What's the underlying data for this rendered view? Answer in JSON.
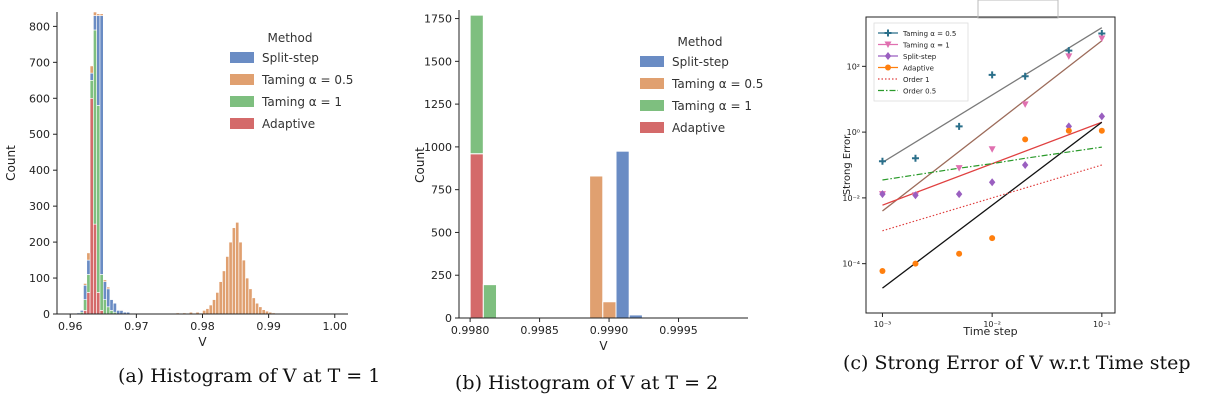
{
  "colors": {
    "split_step": "#6a8cc4",
    "taming_05": "#e0a070",
    "taming_1": "#7ebf7f",
    "adaptive": "#d46a6a",
    "gray_line": "#7a7a7a",
    "brown_line": "#9c6b5a"
  },
  "captions": {
    "a": "(a) Histogram of V at T = 1",
    "b": "(b) Histogram of V at T = 2",
    "c": "(c) Strong Error of V w.r.t Time step"
  },
  "chart_data": [
    {
      "type": "bar",
      "subtype": "stacked-histogram",
      "xlabel": "V",
      "ylabel": "Count",
      "xlim": [
        0.958,
        1.002
      ],
      "ylim": [
        0,
        840
      ],
      "xticks": [
        "0.96",
        "0.97",
        "0.98",
        "0.99",
        "1.00"
      ],
      "yticks": [
        "0",
        "100",
        "200",
        "300",
        "400",
        "500",
        "600",
        "700",
        "800"
      ],
      "legend": {
        "title": "Method",
        "entries": [
          "Split-step",
          "Taming α = 0.5",
          "Taming α = 1",
          "Adaptive"
        ],
        "placement": "top-right"
      },
      "bin_width": 0.0005,
      "series": [
        {
          "name": "Adaptive",
          "bins": [
            [
              0.962,
              10
            ],
            [
              0.9625,
              60
            ],
            [
              0.963,
              600
            ],
            [
              0.9635,
              250
            ],
            [
              0.964,
              60
            ],
            [
              0.9645,
              10
            ]
          ]
        },
        {
          "name": "Taming α = 1",
          "bins": [
            [
              0.9615,
              5
            ],
            [
              0.962,
              30
            ],
            [
              0.9625,
              50
            ],
            [
              0.963,
              50
            ],
            [
              0.9635,
              540
            ],
            [
              0.964,
              520
            ],
            [
              0.9645,
              100
            ],
            [
              0.965,
              40
            ],
            [
              0.9655,
              20
            ],
            [
              0.966,
              10
            ],
            [
              0.9665,
              5
            ]
          ]
        },
        {
          "name": "Split-step",
          "bins": [
            [
              0.961,
              3
            ],
            [
              0.9615,
              5
            ],
            [
              0.962,
              40
            ],
            [
              0.9625,
              40
            ],
            [
              0.963,
              20
            ],
            [
              0.9635,
              40
            ],
            [
              0.964,
              250
            ],
            [
              0.9645,
              720
            ],
            [
              0.965,
              50
            ],
            [
              0.9655,
              50
            ],
            [
              0.966,
              30
            ],
            [
              0.9665,
              25
            ],
            [
              0.967,
              10
            ],
            [
              0.9675,
              10
            ],
            [
              0.968,
              5
            ],
            [
              0.9685,
              5
            ]
          ]
        },
        {
          "name": "Taming α = 0.5",
          "bins": [
            [
              0.962,
              5
            ],
            [
              0.9625,
              20
            ],
            [
              0.963,
              20
            ],
            [
              0.9635,
              10
            ],
            [
              0.964,
              5
            ],
            [
              0.9645,
              5
            ],
            [
              0.965,
              5
            ],
            [
              0.9655,
              5
            ],
            [
              0.9675,
              2
            ],
            [
              0.97,
              2
            ],
            [
              0.975,
              2
            ],
            [
              0.976,
              3
            ],
            [
              0.977,
              3
            ],
            [
              0.978,
              5
            ],
            [
              0.979,
              5
            ],
            [
              0.98,
              10
            ],
            [
              0.9805,
              15
            ],
            [
              0.981,
              25
            ],
            [
              0.9815,
              40
            ],
            [
              0.982,
              60
            ],
            [
              0.9825,
              90
            ],
            [
              0.983,
              120
            ],
            [
              0.9835,
              160
            ],
            [
              0.984,
              200
            ],
            [
              0.9845,
              240
            ],
            [
              0.985,
              255
            ],
            [
              0.9855,
              200
            ],
            [
              0.986,
              150
            ],
            [
              0.9865,
              100
            ],
            [
              0.987,
              70
            ],
            [
              0.9875,
              45
            ],
            [
              0.988,
              30
            ],
            [
              0.9885,
              20
            ],
            [
              0.989,
              12
            ],
            [
              0.9895,
              8
            ],
            [
              0.99,
              5
            ],
            [
              0.9905,
              3
            ],
            [
              0.9915,
              2
            ],
            [
              0.993,
              2
            ],
            [
              0.994,
              2
            ],
            [
              0.996,
              1
            ],
            [
              0.998,
              1
            ]
          ]
        }
      ]
    },
    {
      "type": "bar",
      "subtype": "stacked-histogram",
      "xlabel": "V",
      "ylabel": "Count",
      "xlim": [
        0.99792,
        1.0
      ],
      "ylim": [
        0,
        1800
      ],
      "xticks": [
        "0.9980",
        "0.9985",
        "0.9990",
        "0.9995"
      ],
      "yticks": [
        "0",
        "250",
        "500",
        "750",
        "1000",
        "1250",
        "1500",
        "1750"
      ],
      "legend": {
        "title": "Method",
        "entries": [
          "Split-step",
          "Taming α = 0.5",
          "Taming α = 1",
          "Adaptive"
        ],
        "placement": "top-right"
      },
      "bars": [
        {
          "x0": 0.998,
          "x1": 0.998095,
          "segments": [
            {
              "series": "Adaptive",
              "count": 960
            },
            {
              "series": "Taming α = 1",
              "count": 810
            }
          ]
        },
        {
          "x0": 0.998095,
          "x1": 0.99819,
          "segments": [
            {
              "series": "Taming α = 1",
              "count": 195
            }
          ]
        },
        {
          "x0": 0.99886,
          "x1": 0.998955,
          "segments": [
            {
              "series": "Taming α = 0.5",
              "count": 830
            }
          ]
        },
        {
          "x0": 0.998955,
          "x1": 0.99905,
          "segments": [
            {
              "series": "Taming α = 0.5",
              "count": 95
            }
          ]
        },
        {
          "x0": 0.99905,
          "x1": 0.999145,
          "segments": [
            {
              "series": "Split-step",
              "count": 975
            }
          ]
        },
        {
          "x0": 0.999145,
          "x1": 0.99924,
          "segments": [
            {
              "series": "Split-step",
              "count": 18
            }
          ]
        }
      ]
    },
    {
      "type": "scatter",
      "log_x": true,
      "log_y": true,
      "xlabel": "Time step",
      "ylabel": "Strong Error",
      "xlim_exp": [
        -3.15,
        -0.88
      ],
      "ylim_exp": [
        -5.5,
        3.5
      ],
      "xticks": [
        "10⁻³",
        "10⁻²",
        "10⁻¹"
      ],
      "yticks": [
        "10⁻⁴",
        "10⁻²",
        "10⁰",
        "10²"
      ],
      "legend": {
        "placement": "top-left"
      },
      "x": [
        0.001,
        0.002,
        0.005,
        0.01,
        0.02,
        0.05,
        0.1
      ],
      "series": [
        {
          "name": "Taming α = 0.5",
          "marker": "plus",
          "color": "#2a6f8a",
          "y": [
            0.13,
            0.16,
            1.5,
            55,
            50,
            300,
            1000
          ]
        },
        {
          "name": "Taming α = 1",
          "marker": "triangle-down",
          "color": "#e070b0",
          "y": [
            0.013,
            0.012,
            0.08,
            0.3,
            7,
            200,
            700
          ]
        },
        {
          "name": "Split-step",
          "marker": "diamond",
          "color": "#9a5fc0",
          "y": [
            0.013,
            0.012,
            0.013,
            0.03,
            0.1,
            1.5,
            3
          ]
        },
        {
          "name": "Adaptive",
          "marker": "circle",
          "color": "#ff7f0e",
          "y": [
            6e-05,
            0.0001,
            0.0002,
            0.0006,
            0.6,
            1.1,
            1.1
          ]
        },
        {
          "name": "Order 1",
          "style": "dotted-line",
          "color": "#e04040",
          "y": [
            0.001,
            0.002,
            0.005,
            0.01,
            0.02,
            0.05,
            0.1
          ]
        },
        {
          "name": "Order 0.5",
          "style": "dash-dot-line",
          "color": "#2a9a2a",
          "y": [
            0.035,
            0.05,
            0.08,
            0.11,
            0.16,
            0.25,
            0.35
          ]
        }
      ],
      "fit_lines": [
        {
          "color": "#7a7a7a",
          "y_start": 0.12,
          "y_end": 1500
        },
        {
          "color": "#9c6b5a",
          "y_start": 0.004,
          "y_end": 600
        },
        {
          "color": "#e04040",
          "y_start": 0.006,
          "y_end": 2
        },
        {
          "color": "#111111",
          "y_start": 1.8e-05,
          "y_end": 2
        }
      ]
    }
  ]
}
